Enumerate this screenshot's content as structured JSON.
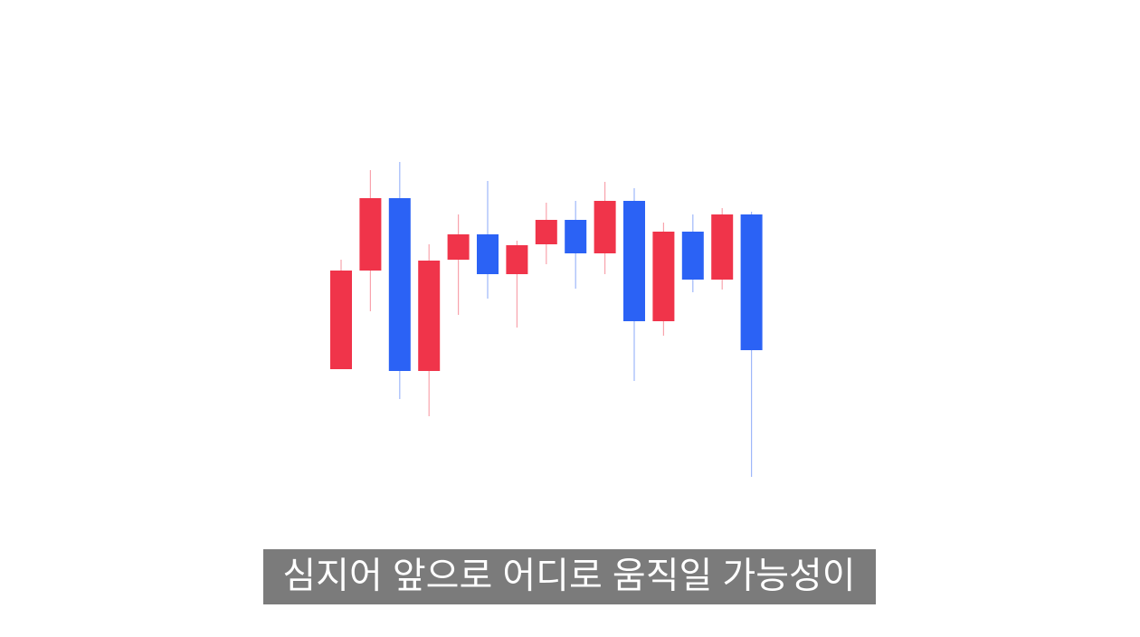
{
  "chart_data": {
    "type": "candlestick",
    "open": [
      296,
      405,
      485,
      294,
      417,
      445,
      401,
      434,
      461,
      424,
      482,
      349,
      448,
      395,
      467
    ],
    "high": [
      417,
      516,
      525,
      434,
      467,
      504,
      438,
      480,
      482,
      503,
      496,
      458,
      467,
      474,
      470
    ],
    "low": [
      296,
      360,
      263,
      244,
      356,
      374,
      342,
      412,
      385,
      401,
      283,
      333,
      381,
      384,
      177
    ],
    "close": [
      405,
      485,
      294,
      416,
      445,
      401,
      433,
      461,
      424,
      482,
      349,
      448,
      395,
      467,
      317
    ],
    "up_color": "#f0344a",
    "down_color": "#2b62f5",
    "subtitle": "심지어 앞으로 어디로 움직일 가능성이"
  }
}
